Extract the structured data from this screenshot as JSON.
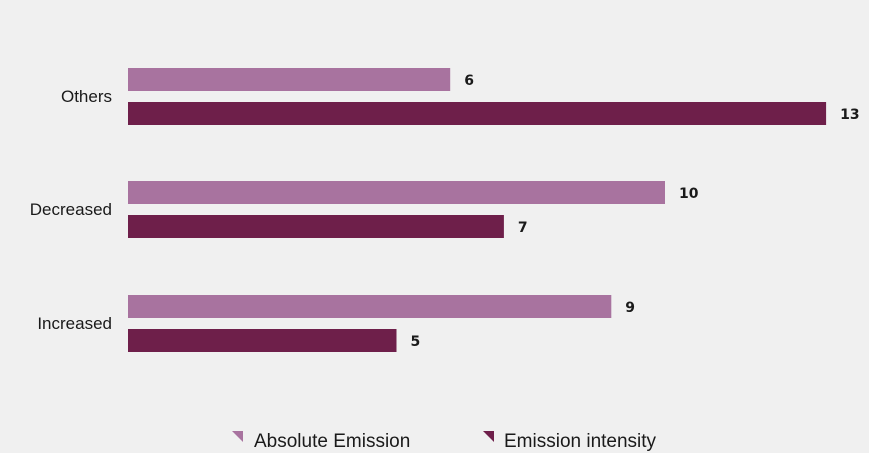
{
  "chart_data": {
    "type": "bar",
    "orientation": "horizontal",
    "categories": [
      "Others",
      "Decreased",
      "Increased"
    ],
    "series": [
      {
        "name": "Absolute Emission",
        "values": [
          6,
          10,
          9
        ],
        "color": "#a8739f"
      },
      {
        "name": "Emission intensity",
        "values": [
          13,
          7,
          5
        ],
        "color": "#6e1f4a"
      }
    ],
    "xlim": [
      0,
      13
    ],
    "grid": false,
    "legend_position": "bottom-center"
  },
  "colors": {
    "background": "#f0f0f0",
    "text": "#1a1a1a"
  }
}
